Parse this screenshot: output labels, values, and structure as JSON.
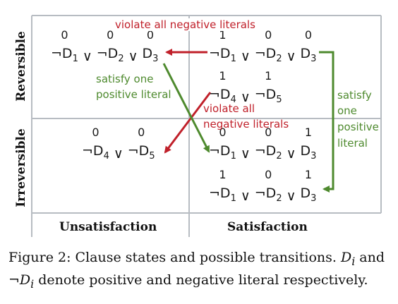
{
  "figure": {
    "row_labels": {
      "top": "Reversible",
      "bottom": "Irreversible"
    },
    "col_labels": {
      "left": "Unsatisfaction",
      "right": "Satisfaction"
    },
    "clauses": {
      "rev_unsat": {
        "bits": [
          "0",
          "0",
          "0"
        ],
        "lits": [
          "D",
          "D",
          "D"
        ],
        "subs": [
          "1",
          "2",
          "3"
        ],
        "neg": [
          true,
          true,
          false
        ]
      },
      "rev_sat_a": {
        "bits": [
          "1",
          "0",
          "0"
        ],
        "lits": [
          "D",
          "D",
          "D"
        ],
        "subs": [
          "1",
          "2",
          "3"
        ],
        "neg": [
          true,
          true,
          false
        ]
      },
      "rev_sat_b": {
        "bits": [
          "1",
          "1"
        ],
        "lits": [
          "D",
          "D"
        ],
        "subs": [
          "4",
          "5"
        ],
        "neg": [
          true,
          true
        ]
      },
      "irr_unsat": {
        "bits": [
          "0",
          "0"
        ],
        "lits": [
          "D",
          "D"
        ],
        "subs": [
          "4",
          "5"
        ],
        "neg": [
          true,
          true
        ]
      },
      "irr_sat_a": {
        "bits": [
          "0",
          "0",
          "1"
        ],
        "lits": [
          "D",
          "D",
          "D"
        ],
        "subs": [
          "1",
          "2",
          "3"
        ],
        "neg": [
          true,
          true,
          false
        ]
      },
      "irr_sat_b": {
        "bits": [
          "1",
          "0",
          "1"
        ],
        "lits": [
          "D",
          "D",
          "D"
        ],
        "subs": [
          "1",
          "2",
          "3"
        ],
        "neg": [
          true,
          true,
          false
        ]
      }
    },
    "annotations": {
      "violate_top": "violate all negative literals",
      "satisfy_one_line1": "satisfy one",
      "satisfy_one_line2": "positive literal",
      "violate_mid_line1": "violate all",
      "violate_mid_line2": "negative literals",
      "satisfy_right_line1": "satisfy",
      "satisfy_right_line2": "one",
      "satisfy_right_line3": "positive",
      "satisfy_right_line4": "literal"
    },
    "colors": {
      "red": "#c0202a",
      "green": "#4e8a2e",
      "grid": "#b7bcc2"
    }
  },
  "caption": {
    "prefix": "Figure 2: Clause states and possible transitions.",
    "di": "D",
    "di_sub": "i",
    "and": "and",
    "neg_di": "¬D",
    "neg_di_sub": "i",
    "rest": "denote positive and negative literal respectively."
  }
}
